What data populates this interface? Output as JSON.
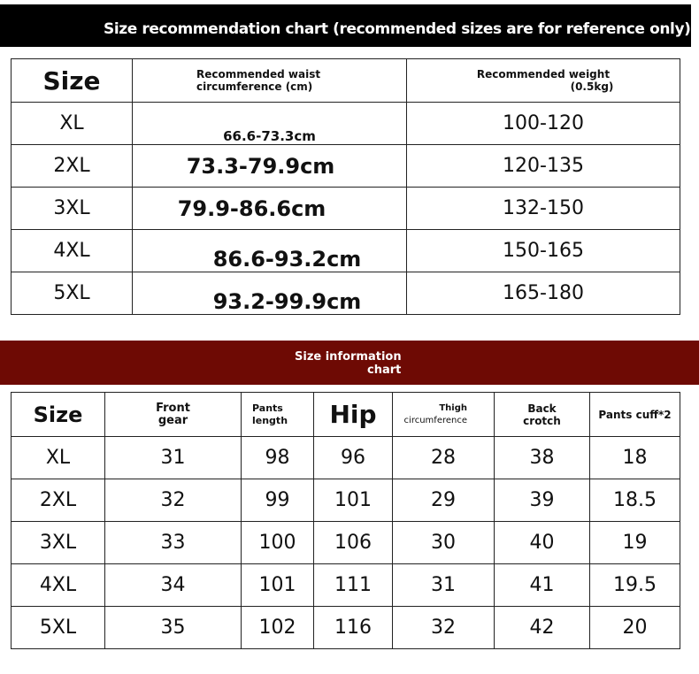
{
  "recommendation": {
    "title": "Size recommendation chart (recommended sizes are for reference only)",
    "headers": {
      "size": "Size",
      "waist_l1": "Recommended waist",
      "waist_l2": "circumference (cm)",
      "weight_l1": "Recommended weight",
      "weight_l2": "(0.5kg)"
    },
    "rows": [
      {
        "size": "XL",
        "waist": "66.6-73.3cm",
        "weight": "100-120"
      },
      {
        "size": "2XL",
        "waist": "73.3-79.9cm",
        "weight": "120-135"
      },
      {
        "size": "3XL",
        "waist": "79.9-86.6cm",
        "weight": "132-150"
      },
      {
        "size": "4XL",
        "waist": "86.6-93.2cm",
        "weight": "150-165"
      },
      {
        "size": "5XL",
        "waist": "93.2-99.9cm",
        "weight": "165-180"
      }
    ]
  },
  "information": {
    "title_l1": "Size information",
    "title_l2": "chart",
    "headers": {
      "size": "Size",
      "front_l1": "Front",
      "front_l2": "gear",
      "length_l1": "Pants",
      "length_l2": "length",
      "hip": "Hip",
      "thigh_l1": "Thigh",
      "thigh_l2": "circumference",
      "back_l1": "Back",
      "back_l2": "crotch",
      "cuff": "Pants cuff*2"
    },
    "rows": [
      [
        "XL",
        "31",
        "98",
        "96",
        "28",
        "38",
        "18"
      ],
      [
        "2XL",
        "32",
        "99",
        "101",
        "29",
        "39",
        "18.5"
      ],
      [
        "3XL",
        "33",
        "100",
        "106",
        "30",
        "40",
        "19"
      ],
      [
        "4XL",
        "34",
        "101",
        "111",
        "31",
        "41",
        "19.5"
      ],
      [
        "5XL",
        "35",
        "102",
        "116",
        "32",
        "42",
        "20"
      ]
    ]
  },
  "colors": {
    "header1": "#000000",
    "header2": "#6e0a04"
  }
}
